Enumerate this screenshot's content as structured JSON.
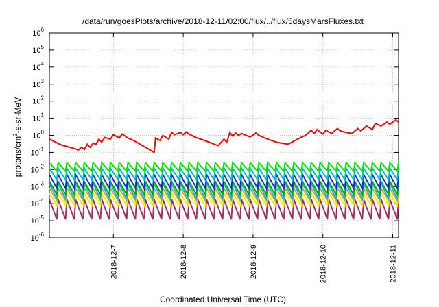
{
  "chart_data": {
    "type": "line",
    "title": "/data/run/goesPlots/archive/2018-12-11/02:00/flux/../flux/5daysMarsFluxes.txt",
    "xlabel": "Coordinated Universal Time (UTC)",
    "ylabel": {
      "prefix": "protons/cm",
      "sup": "2",
      "suffix": "-s-sr-MeV"
    },
    "yscale": "log",
    "ylim": [
      1e-06,
      1000000.0
    ],
    "xlim": [
      "2018-12-06T02:00",
      "2018-12-11T02:00"
    ],
    "grid": true,
    "y_ticks": [
      {
        "value": 1e-06,
        "base": "10",
        "exp": "-6"
      },
      {
        "value": 1e-05,
        "base": "10",
        "exp": "-5"
      },
      {
        "value": 0.0001,
        "base": "10",
        "exp": "-4"
      },
      {
        "value": 0.001,
        "base": "10",
        "exp": "-3"
      },
      {
        "value": 0.01,
        "base": "10",
        "exp": "-2"
      },
      {
        "value": 0.1,
        "base": "10",
        "exp": "-1"
      },
      {
        "value": 1.0,
        "base": "10",
        "exp": "0"
      },
      {
        "value": 10.0,
        "base": "10",
        "exp": "1"
      },
      {
        "value": 100.0,
        "base": "10",
        "exp": "2"
      },
      {
        "value": 1000.0,
        "base": "10",
        "exp": "3"
      },
      {
        "value": 10000.0,
        "base": "10",
        "exp": "4"
      },
      {
        "value": 100000.0,
        "base": "10",
        "exp": "5"
      },
      {
        "value": 1000000.0,
        "base": "10",
        "exp": "6"
      }
    ],
    "x_ticks": [
      {
        "value": "2018-12-07T00:00",
        "label": "2018-12-7"
      },
      {
        "value": "2018-12-08T00:00",
        "label": "2018-12-8"
      },
      {
        "value": "2018-12-09T00:00",
        "label": "2018-12-9"
      },
      {
        "value": "2018-12-10T00:00",
        "label": "2018-12-10"
      },
      {
        "value": "2018-12-11T00:00",
        "label": "2018-12-11"
      }
    ],
    "series": [
      {
        "color": "#ff0000",
        "x": [
          "2018-12-06T02:00",
          "2018-12-06T06:00",
          "2018-12-06T10:00",
          "2018-12-06T12:00",
          "2018-12-06T13:00",
          "2018-12-06T14:00",
          "2018-12-06T15:00",
          "2018-12-06T16:00",
          "2018-12-06T17:00",
          "2018-12-06T18:00",
          "2018-12-06T19:00",
          "2018-12-06T20:00",
          "2018-12-06T21:00",
          "2018-12-06T23:00",
          "2018-12-07T00:00",
          "2018-12-07T02:00",
          "2018-12-07T03:00",
          "2018-12-07T05:00",
          "2018-12-07T07:00",
          "2018-12-07T11:00",
          "2018-12-07T14:00",
          "2018-12-07T14:30",
          "2018-12-07T16:00",
          "2018-12-07T17:00",
          "2018-12-07T19:00",
          "2018-12-07T20:00",
          "2018-12-07T21:00",
          "2018-12-07T23:00",
          "2018-12-08T00:00",
          "2018-12-08T01:00",
          "2018-12-08T02:00",
          "2018-12-08T04:00",
          "2018-12-08T08:00",
          "2018-12-08T12:00",
          "2018-12-08T14:00",
          "2018-12-08T15:00",
          "2018-12-08T16:00",
          "2018-12-08T17:00",
          "2018-12-08T18:00",
          "2018-12-08T19:00",
          "2018-12-08T20:00",
          "2018-12-08T23:00",
          "2018-12-09T01:00",
          "2018-12-09T02:00",
          "2018-12-09T05:00",
          "2018-12-09T08:00",
          "2018-12-09T12:00",
          "2018-12-09T16:00",
          "2018-12-09T18:00",
          "2018-12-09T20:00",
          "2018-12-09T21:00",
          "2018-12-09T22:00",
          "2018-12-10T00:00",
          "2018-12-10T01:00",
          "2018-12-10T03:00",
          "2018-12-10T05:00",
          "2018-12-10T06:00",
          "2018-12-10T08:00",
          "2018-12-10T10:00",
          "2018-12-10T12:00",
          "2018-12-10T13:00",
          "2018-12-10T15:00",
          "2018-12-10T17:00",
          "2018-12-10T18:00",
          "2018-12-10T20:00",
          "2018-12-10T22:00",
          "2018-12-10T23:00",
          "2018-12-11T01:00",
          "2018-12-11T02:00"
        ],
        "y": [
          0.6,
          0.28,
          0.18,
          0.14,
          0.2,
          0.15,
          0.3,
          0.2,
          0.35,
          0.3,
          0.6,
          0.4,
          0.75,
          0.6,
          1.1,
          0.7,
          1.2,
          0.7,
          0.5,
          0.2,
          0.1,
          0.7,
          0.5,
          1.0,
          0.6,
          1.5,
          1.1,
          1.5,
          1.1,
          1.6,
          1.2,
          0.8,
          0.45,
          0.25,
          0.6,
          0.4,
          1.5,
          0.9,
          1.4,
          1.0,
          1.3,
          0.8,
          1.4,
          1.0,
          0.6,
          0.4,
          0.3,
          0.7,
          1.0,
          2.0,
          1.3,
          2.2,
          1.2,
          2.0,
          1.3,
          2.5,
          1.8,
          1.5,
          1.3,
          2.5,
          1.8,
          3.5,
          2.2,
          5.0,
          3.5,
          6.0,
          4.5,
          8.0,
          6.0
        ]
      }
    ],
    "sawtooth_series": [
      {
        "color": "#00e800",
        "peak": 0.025,
        "trough": 0.008
      },
      {
        "color": "#00c0c0",
        "peak": 0.012,
        "trough": 0.0025
      },
      {
        "color": "#1030d0",
        "peak": 0.005,
        "trough": 0.0008
      },
      {
        "color": "#00b000",
        "peak": 0.002,
        "trough": 0.00035
      },
      {
        "color": "#20b0e0",
        "peak": 0.0015,
        "trough": 0.0002
      },
      {
        "color": "#e0a040",
        "peak": 0.0008,
        "trough": 0.00015
      },
      {
        "color": "#f0f000",
        "peak": 0.0004,
        "trough": 8e-05
      },
      {
        "color": "#a03060",
        "peak": 0.00018,
        "trough": 1.2e-05
      }
    ],
    "sawtooth_period_hours": 3
  }
}
